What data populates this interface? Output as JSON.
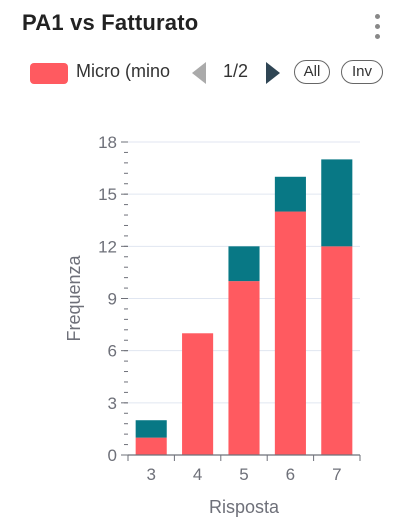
{
  "header": {
    "title": "PA1 vs Fatturato",
    "menu_icon": "more-vertical-icon"
  },
  "legend": {
    "item_label": "Micro (mino",
    "item_color": "#ff5a60",
    "pager_text": "1/2",
    "all_label": "All",
    "inv_label": "Inv"
  },
  "chart_data": {
    "type": "bar",
    "stacked": true,
    "categories": [
      "3",
      "4",
      "5",
      "6",
      "7"
    ],
    "series": [
      {
        "name": "Micro (mino",
        "color": "#ff5a60",
        "values": [
          1,
          7,
          10,
          14,
          12
        ]
      },
      {
        "color": "#087885",
        "values": [
          1,
          0,
          2,
          2,
          5
        ]
      }
    ],
    "xlabel": "Risposta",
    "ylabel": "Frequenza",
    "ylim": [
      0,
      18
    ],
    "yticks": [
      0,
      3,
      6,
      9,
      12,
      15,
      18
    ],
    "grid": true
  }
}
